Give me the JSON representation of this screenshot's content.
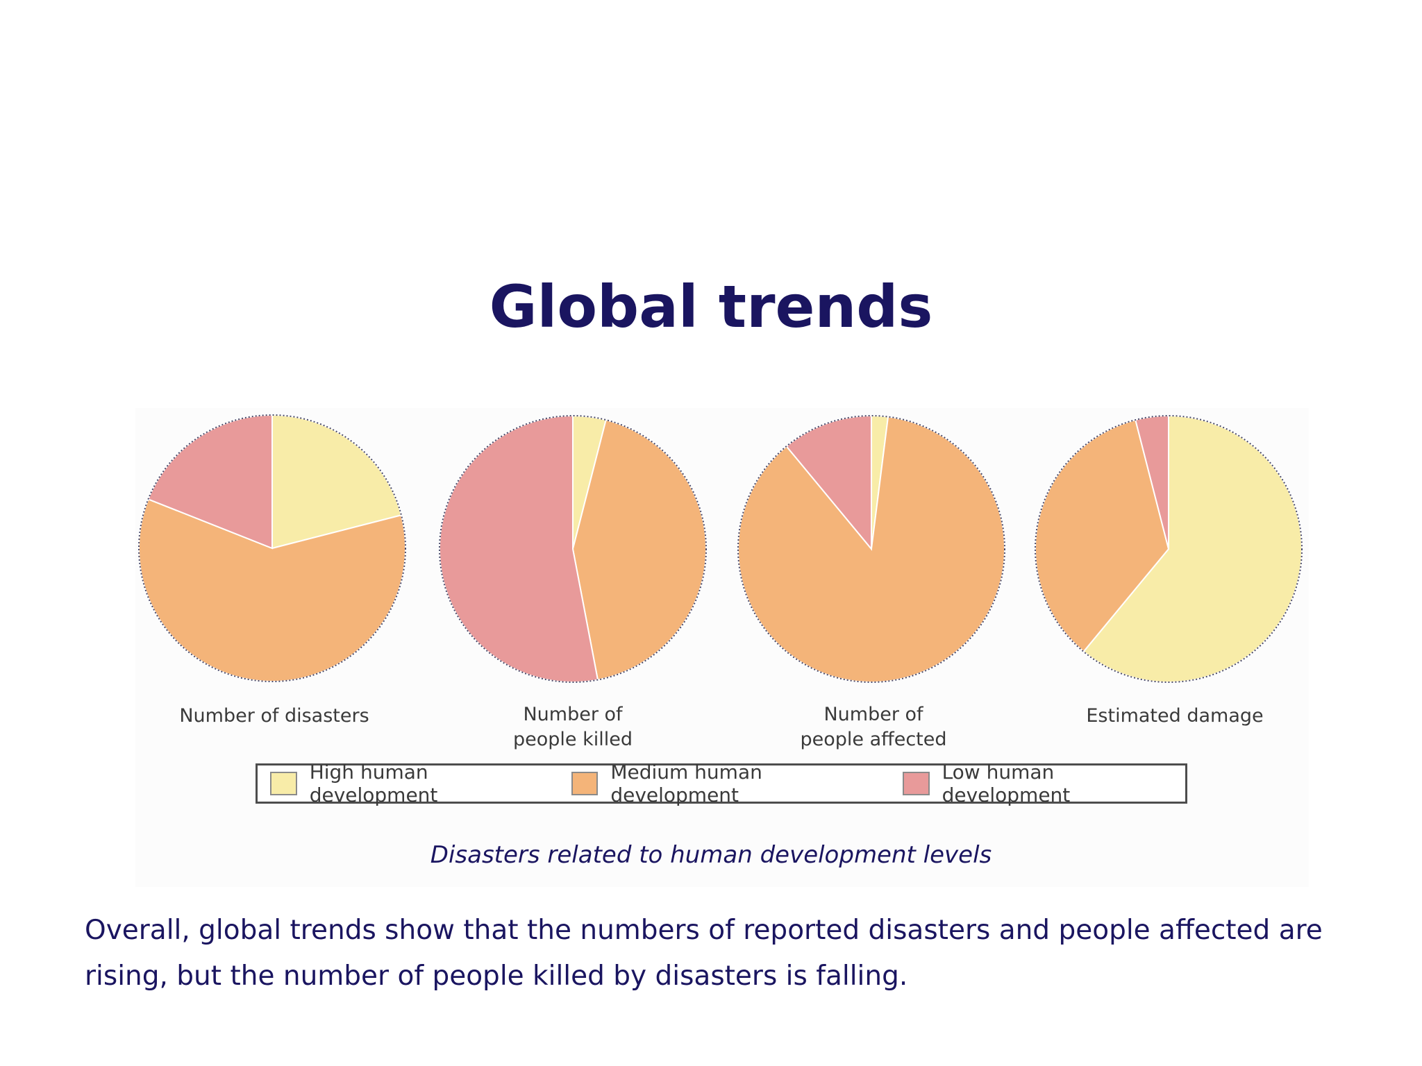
{
  "slide": {
    "title": "Global trends",
    "caption": "Disasters related to human development levels",
    "body": "Overall, global trends show that the numbers of reported disasters and people affected are rising, but the number of people killed by disasters is falling."
  },
  "colors": {
    "title_text": "#1a1560",
    "high": "#f8eca8",
    "medium": "#f4b479",
    "low": "#e89a9a"
  },
  "legend": {
    "items": [
      {
        "label": "High human development",
        "color": "#f8eca8"
      },
      {
        "label": "Medium human development",
        "color": "#f4b479"
      },
      {
        "label": "Low human development",
        "color": "#e89a9a"
      }
    ]
  },
  "chart_data": [
    {
      "type": "pie",
      "title": "Number of disasters",
      "categories": [
        "High human development",
        "Medium human development",
        "Low human development"
      ],
      "values": [
        21,
        60,
        19
      ]
    },
    {
      "type": "pie",
      "title": "Number of\npeople killed",
      "categories": [
        "High human development",
        "Medium human development",
        "Low human development"
      ],
      "values": [
        4,
        43,
        53
      ]
    },
    {
      "type": "pie",
      "title": "Number of\npeople affected",
      "categories": [
        "High human development",
        "Medium human development",
        "Low human development"
      ],
      "values": [
        2,
        87,
        11
      ]
    },
    {
      "type": "pie",
      "title": "Estimated damage",
      "categories": [
        "High human development",
        "Medium human development",
        "Low human development"
      ],
      "values": [
        61,
        35,
        4
      ]
    }
  ]
}
